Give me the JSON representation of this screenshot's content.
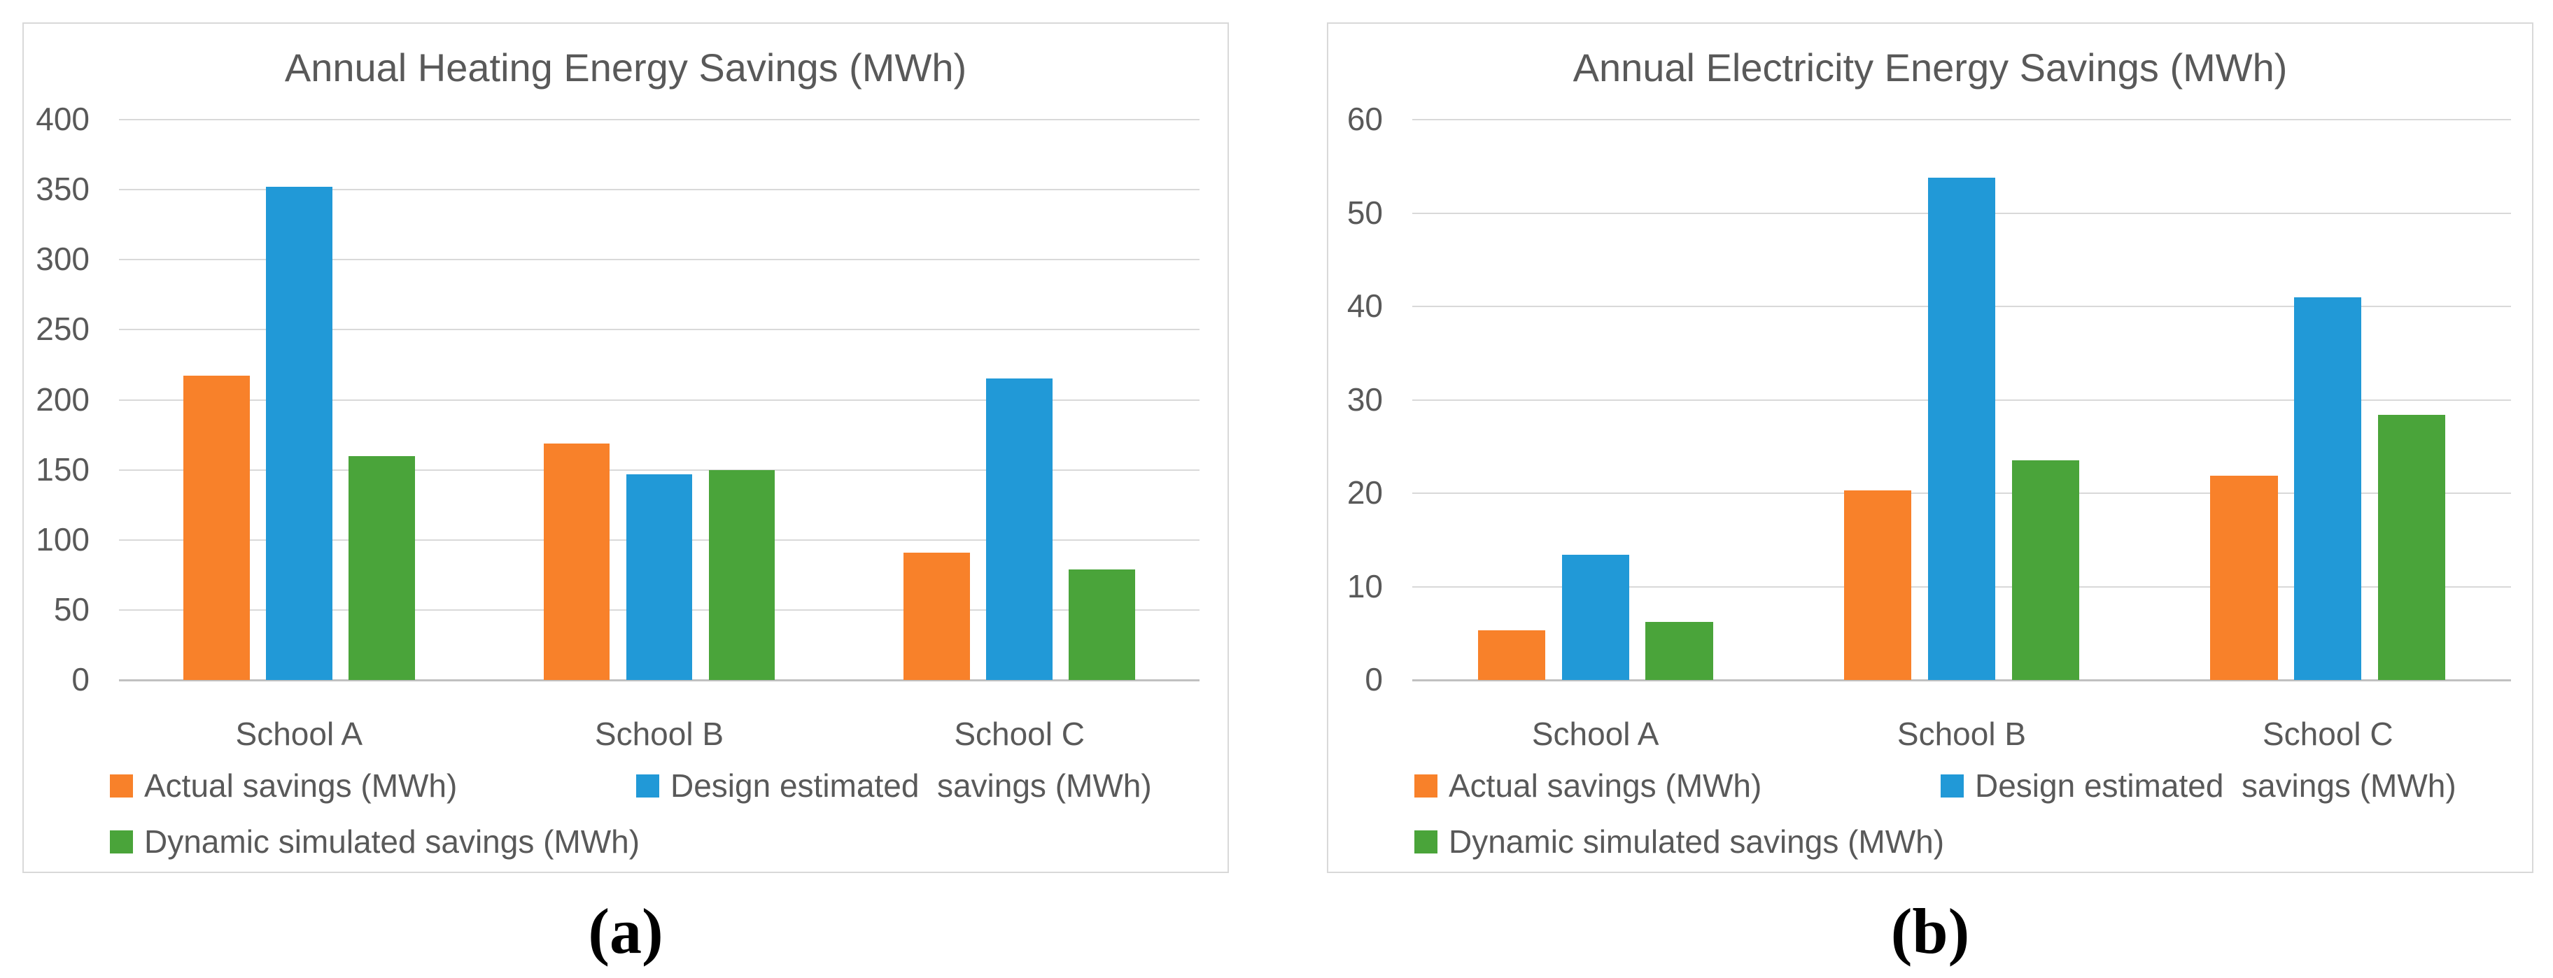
{
  "figure": {
    "background": "#FFFFFF",
    "panels": [
      {
        "caption": "(a)"
      },
      {
        "caption": "(b)"
      }
    ]
  },
  "colors": {
    "actual": "#F8812A",
    "design": "#2199D7",
    "dynamic": "#4AA43A",
    "gridline": "#D9D9D9",
    "zero_line": "#C0C0C0",
    "text": "#595959",
    "panel_border": "#D9D9D9"
  },
  "chart_data": [
    {
      "id": "heating",
      "type": "bar",
      "title": "Annual Heating Energy Savings (MWh)",
      "categories": [
        "School A",
        "School B",
        "School C"
      ],
      "series": [
        {
          "key": "actual",
          "name": "Actual savings (MWh)",
          "color": "#F8812A",
          "values": [
            217,
            169,
            91
          ]
        },
        {
          "key": "design",
          "name": "Design estimated  savings (MWh)",
          "color": "#2199D7",
          "values": [
            352,
            147,
            215
          ]
        },
        {
          "key": "dynamic",
          "name": "Dynamic simulated savings (MWh)",
          "color": "#4AA43A",
          "values": [
            160,
            150,
            79
          ]
        }
      ],
      "xlabel": "",
      "ylabel": "",
      "ylim": [
        0,
        400
      ],
      "ytick_step": 50,
      "yticks": [
        400,
        350,
        300,
        250,
        200,
        150,
        100,
        50,
        0
      ],
      "grid": true,
      "legend_position": "bottom"
    },
    {
      "id": "electricity",
      "type": "bar",
      "title": "Annual Electricity Energy Savings (MWh)",
      "categories": [
        "School A",
        "School B",
        "School C"
      ],
      "series": [
        {
          "key": "actual",
          "name": "Actual savings (MWh)",
          "color": "#F8812A",
          "values": [
            5.3,
            20.3,
            21.9
          ]
        },
        {
          "key": "design",
          "name": "Design estimated  savings (MWh)",
          "color": "#2199D7",
          "values": [
            13.4,
            53.8,
            41
          ]
        },
        {
          "key": "dynamic",
          "name": "Dynamic simulated savings (MWh)",
          "color": "#4AA43A",
          "values": [
            6.2,
            23.5,
            28.4
          ]
        }
      ],
      "xlabel": "",
      "ylabel": "",
      "ylim": [
        0,
        60
      ],
      "ytick_step": 10,
      "yticks": [
        60,
        50,
        40,
        30,
        20,
        10,
        0
      ],
      "grid": true,
      "legend_position": "bottom"
    }
  ]
}
